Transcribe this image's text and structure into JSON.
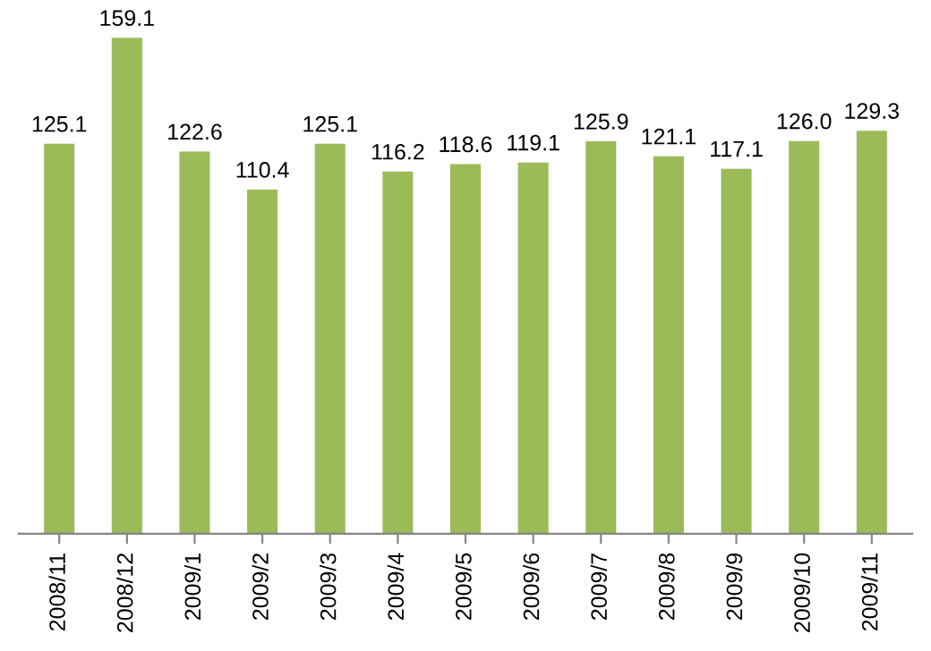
{
  "chart_data": {
    "type": "bar",
    "categories": [
      "2008/11",
      "2008/12",
      "2009/1",
      "2009/2",
      "2009/3",
      "2009/4",
      "2009/5",
      "2009/6",
      "2009/7",
      "2009/8",
      "2009/9",
      "2009/10",
      "2009/11"
    ],
    "values": [
      125.1,
      159.1,
      122.6,
      110.4,
      125.1,
      116.2,
      118.6,
      119.1,
      125.9,
      121.1,
      117.1,
      126.0,
      129.3
    ],
    "color": "#9bbb59",
    "data_labels": true,
    "value_labels": [
      "125.1",
      "159.1",
      "122.6",
      "110.4",
      "125.1",
      "116.2",
      "118.6",
      "119.1",
      "125.9",
      "121.1",
      "117.1",
      "126.0",
      "129.3"
    ],
    "tick_labels": "x",
    "grid": false,
    "legend": false
  }
}
